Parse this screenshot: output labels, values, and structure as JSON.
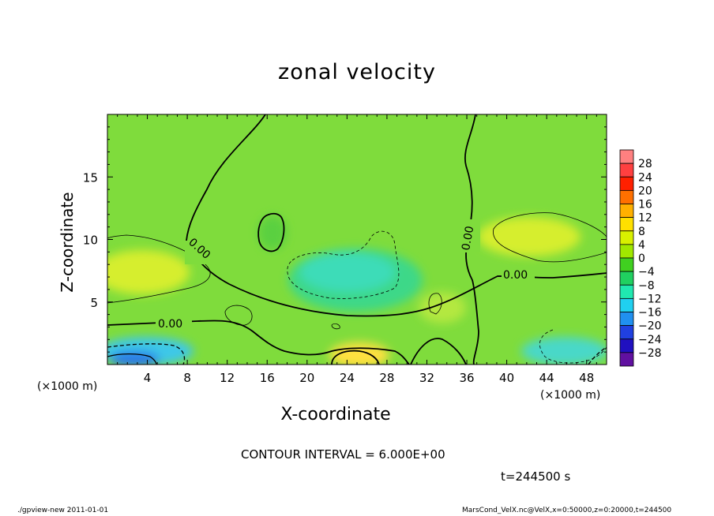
{
  "chart_data": {
    "type": "heatmap",
    "title": "zonal velocity",
    "xlabel": "X-coordinate",
    "ylabel": "Z-coordinate",
    "x_unit_label": "(×1000 m)",
    "xlim": [
      0,
      50
    ],
    "ylim": [
      0,
      20
    ],
    "x_ticks": [
      "4",
      "8",
      "12",
      "16",
      "20",
      "24",
      "28",
      "32",
      "36",
      "40",
      "44",
      "48"
    ],
    "y_ticks": [
      "5",
      "10",
      "15"
    ],
    "contour_labels": [
      "0.00",
      "0.00",
      "0.00",
      "0.00"
    ],
    "colorbar": {
      "labels": [
        "28",
        "24",
        "20",
        "16",
        "12",
        "8",
        "4",
        "0",
        "−4",
        "−8",
        "−12",
        "−16",
        "−20",
        "−24",
        "−28"
      ],
      "colors": [
        "#ff8080",
        "#ff4040",
        "#ff2000",
        "#ff7000",
        "#ffb000",
        "#ffe000",
        "#d8f000",
        "#a0e800",
        "#40d020",
        "#20d060",
        "#20e8b0",
        "#20d0f0",
        "#2090f0",
        "#2040e0",
        "#2010c0",
        "#6010a0"
      ]
    },
    "contour_interval": "CONTOUR INTERVAL = 6.000E+00",
    "time": "t=244500 s"
  },
  "footer": {
    "left": "./gpview-new  2011-01-01",
    "right": "MarsCond_VelX.nc@VelX,x=0:50000,z=0:20000,t=244500"
  }
}
